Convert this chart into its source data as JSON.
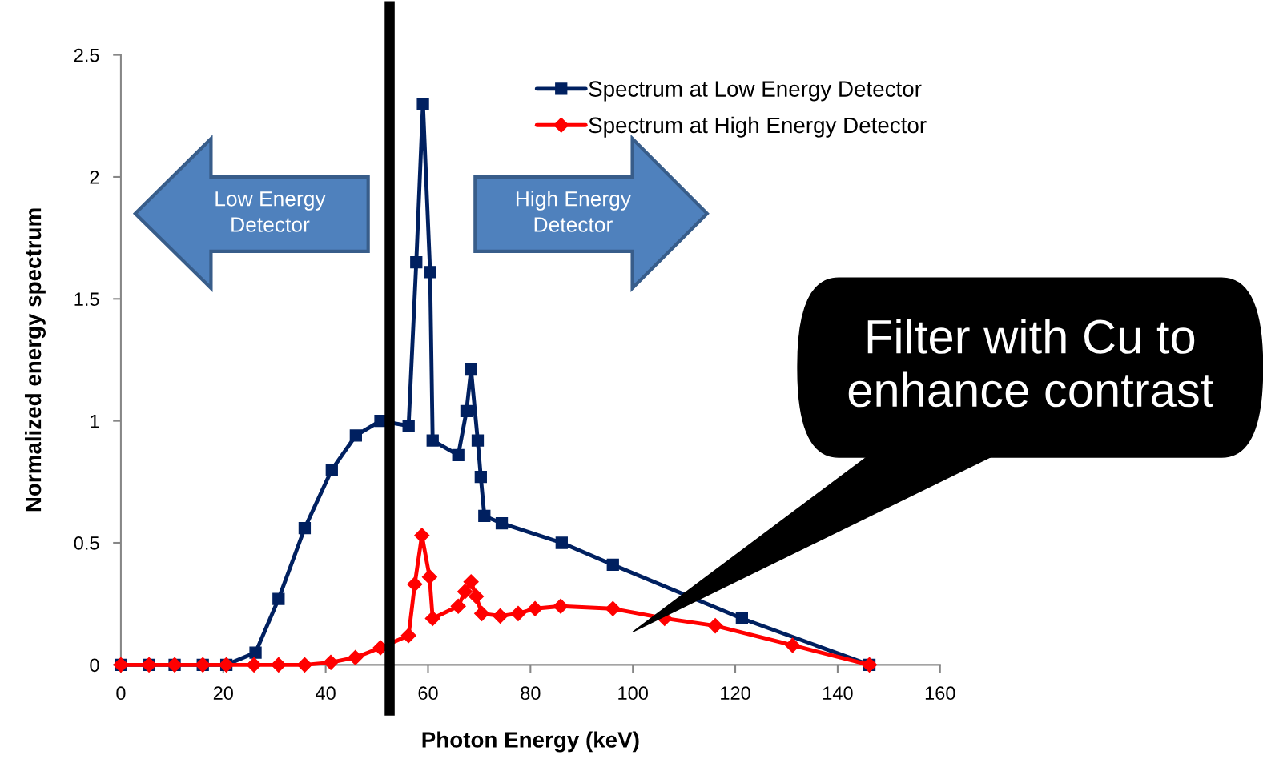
{
  "chart_data": {
    "type": "line",
    "xlabel": "Photon Energy (keV)",
    "ylabel": "Normalized energy spectrum",
    "xlim": [
      0,
      160
    ],
    "xticks": [
      0,
      20,
      40,
      60,
      80,
      100,
      120,
      140,
      160
    ],
    "ylim": [
      0,
      2.5
    ],
    "yticks": [
      0,
      0.5,
      1,
      1.5,
      2,
      2.5
    ],
    "grid": false,
    "legend": "top right",
    "line_style": "solid",
    "series": [
      {
        "name": "Spectrum at Low Energy Detector",
        "color": "#002060",
        "marker": "square",
        "x": [
          0,
          5.5,
          10.5,
          16,
          20.6,
          26.3,
          30.8,
          35.9,
          41.2,
          45.9,
          50.7,
          56.2,
          57.7,
          59.0,
          60.4,
          60.9,
          65.9,
          67.5,
          68.4,
          69.7,
          70.3,
          71.0,
          74.4,
          86.1,
          96.1,
          121.3,
          146.2
        ],
        "values": [
          0,
          0,
          0,
          0,
          0,
          0.05,
          0.27,
          0.56,
          0.8,
          0.94,
          1.0,
          0.98,
          1.65,
          2.3,
          1.61,
          0.92,
          0.86,
          1.04,
          1.21,
          0.92,
          0.77,
          0.61,
          0.58,
          0.5,
          0.41,
          0.19,
          0
        ]
      },
      {
        "name": "Spectrum at High Energy Detector",
        "color": "#ff0000",
        "marker": "diamond",
        "x": [
          0,
          5.5,
          10.5,
          16,
          20.6,
          26,
          30.8,
          35.9,
          41,
          45.8,
          50.7,
          56.2,
          57.4,
          58.8,
          60.3,
          60.9,
          65.9,
          67.2,
          68.4,
          69.4,
          70.5,
          74.1,
          77.6,
          80.9,
          85.9,
          96.1,
          106.2,
          116.1,
          131.2,
          146.2
        ],
        "values": [
          0,
          0,
          0,
          0,
          0,
          0,
          0,
          0,
          0.01,
          0.03,
          0.07,
          0.12,
          0.33,
          0.53,
          0.36,
          0.19,
          0.24,
          0.3,
          0.34,
          0.28,
          0.21,
          0.2,
          0.21,
          0.23,
          0.24,
          0.23,
          0.19,
          0.16,
          0.08,
          0
        ]
      }
    ],
    "ref_lines": [
      {
        "axis": "x",
        "value": 52.5,
        "color": "#000000",
        "line_style": "solid"
      }
    ],
    "annotations": [
      "Low Energy Detector",
      "High Energy Detector",
      "Filter with Cu to enhance contrast"
    ]
  }
}
